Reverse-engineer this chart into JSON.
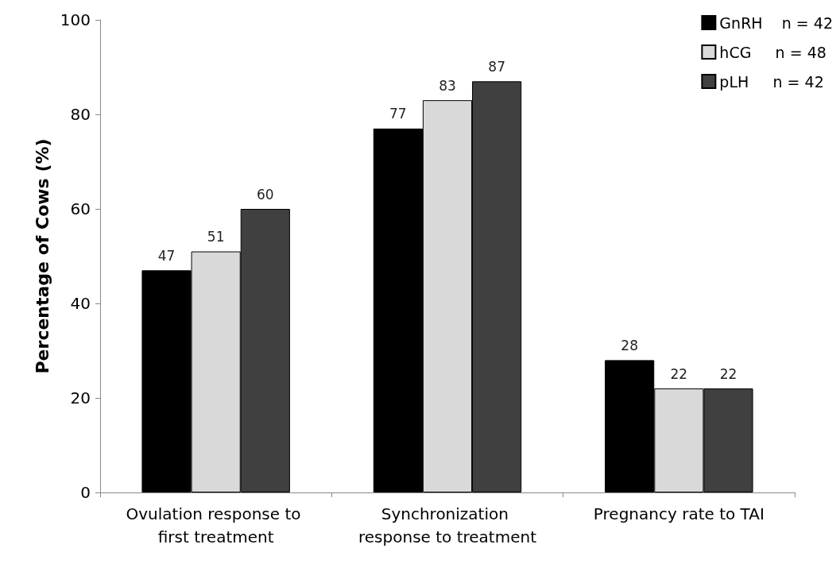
{
  "chart_data": {
    "type": "bar",
    "ylabel": "Percentage of Cows (%)",
    "categories": [
      "Ovulation response to first treatment",
      "Synchronization response to treatment",
      "Pregnancy rate to TAI"
    ],
    "series": [
      {
        "name": "GnRH    n = 42",
        "color": "#000000",
        "values": [
          47,
          77,
          28
        ]
      },
      {
        "name": "hCG     n = 48",
        "color": "#d9d9d9",
        "values": [
          51,
          83,
          22
        ]
      },
      {
        "name": "pLH     n = 42",
        "color": "#404040",
        "values": [
          60,
          87,
          22
        ]
      }
    ],
    "ylim": [
      0,
      100
    ],
    "yticks": [
      0,
      20,
      40,
      60,
      80,
      100
    ],
    "grid": false,
    "legend": "top right",
    "data_labels": true
  }
}
